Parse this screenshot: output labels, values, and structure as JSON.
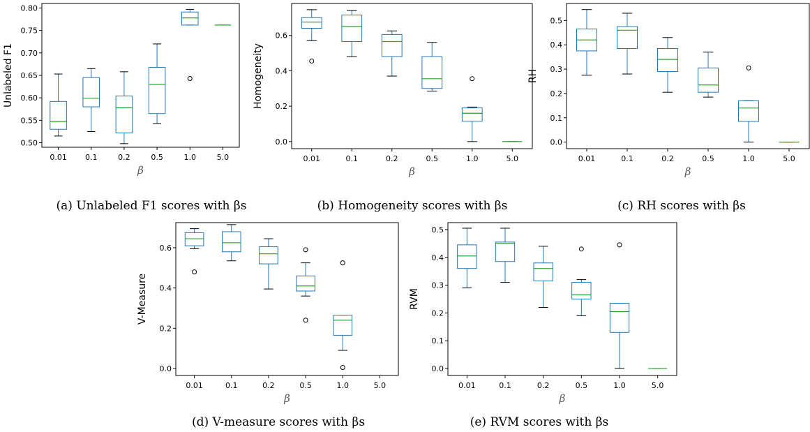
{
  "chart_data": [
    {
      "type": "box",
      "caption": "(a) Unlabeled F1 scores with βs",
      "xlabel": "β",
      "ylabel": "Unlabeled F1",
      "ylim": [
        0.49,
        0.81
      ],
      "yticks": [
        0.5,
        0.55,
        0.6,
        0.65,
        0.7,
        0.75,
        0.8
      ],
      "ytick_labels": [
        "0.50",
        "0.55",
        "0.60",
        "0.65",
        "0.70",
        "0.75",
        "0.80"
      ],
      "categories": [
        "0.01",
        "0.1",
        "0.2",
        "0.5",
        "1.0",
        "5.0"
      ],
      "boxes": [
        {
          "whislo": 0.515,
          "q1": 0.53,
          "med": 0.547,
          "q3": 0.592,
          "whishi": 0.653,
          "fliers": []
        },
        {
          "whislo": 0.525,
          "q1": 0.58,
          "med": 0.599,
          "q3": 0.645,
          "whishi": 0.665,
          "fliers": []
        },
        {
          "whislo": 0.498,
          "q1": 0.522,
          "med": 0.578,
          "q3": 0.604,
          "whishi": 0.658,
          "fliers": []
        },
        {
          "whislo": 0.543,
          "q1": 0.565,
          "med": 0.63,
          "q3": 0.668,
          "whishi": 0.72,
          "fliers": []
        },
        {
          "whislo": 0.762,
          "q1": 0.762,
          "med": 0.778,
          "q3": 0.791,
          "whishi": 0.797,
          "fliers": [
            0.643
          ]
        },
        {
          "whislo": 0.762,
          "q1": 0.762,
          "med": 0.762,
          "q3": 0.762,
          "whishi": 0.762,
          "fliers": []
        }
      ]
    },
    {
      "type": "box",
      "caption": "(b) Homogeneity scores with βs",
      "xlabel": "β",
      "ylabel": "Homogeneity",
      "ylim": [
        -0.04,
        0.78
      ],
      "yticks": [
        0.0,
        0.2,
        0.4,
        0.6
      ],
      "ytick_labels": [
        "0.0",
        "0.2",
        "0.4",
        "0.6"
      ],
      "categories": [
        "0.01",
        "0.1",
        "0.2",
        "0.5",
        "1.0",
        "5.0"
      ],
      "boxes": [
        {
          "whislo": 0.57,
          "q1": 0.64,
          "med": 0.675,
          "q3": 0.7,
          "whishi": 0.745,
          "fliers": [
            0.455
          ]
        },
        {
          "whislo": 0.48,
          "q1": 0.565,
          "med": 0.65,
          "q3": 0.715,
          "whishi": 0.74,
          "fliers": []
        },
        {
          "whislo": 0.37,
          "q1": 0.48,
          "med": 0.565,
          "q3": 0.605,
          "whishi": 0.625,
          "fliers": []
        },
        {
          "whislo": 0.285,
          "q1": 0.3,
          "med": 0.355,
          "q3": 0.48,
          "whishi": 0.56,
          "fliers": []
        },
        {
          "whislo": 0.0,
          "q1": 0.115,
          "med": 0.16,
          "q3": 0.19,
          "whishi": 0.195,
          "fliers": [
            0.355
          ]
        },
        {
          "whislo": 0.0,
          "q1": 0.0,
          "med": 0.0,
          "q3": 0.0,
          "whishi": 0.0,
          "fliers": []
        }
      ]
    },
    {
      "type": "box",
      "caption": "(c) RH scores with βs",
      "xlabel": "β",
      "ylabel": "RH",
      "ylim": [
        -0.027,
        0.57
      ],
      "yticks": [
        0.0,
        0.1,
        0.2,
        0.3,
        0.4,
        0.5
      ],
      "ytick_labels": [
        "0.0",
        "0.1",
        "0.2",
        "0.3",
        "0.4",
        "0.5"
      ],
      "categories": [
        "0.01",
        "0.1",
        "0.2",
        "0.5",
        "1.0",
        "5.0"
      ],
      "boxes": [
        {
          "whislo": 0.275,
          "q1": 0.375,
          "med": 0.42,
          "q3": 0.465,
          "whishi": 0.545,
          "fliers": []
        },
        {
          "whislo": 0.28,
          "q1": 0.385,
          "med": 0.46,
          "q3": 0.475,
          "whishi": 0.53,
          "fliers": []
        },
        {
          "whislo": 0.205,
          "q1": 0.29,
          "med": 0.34,
          "q3": 0.385,
          "whishi": 0.43,
          "fliers": []
        },
        {
          "whislo": 0.185,
          "q1": 0.205,
          "med": 0.235,
          "q3": 0.305,
          "whishi": 0.37,
          "fliers": []
        },
        {
          "whislo": 0.0,
          "q1": 0.085,
          "med": 0.14,
          "q3": 0.17,
          "whishi": 0.17,
          "fliers": [
            0.305
          ]
        },
        {
          "whislo": 0.0,
          "q1": 0.0,
          "med": 0.0,
          "q3": 0.0,
          "whishi": 0.0,
          "fliers": []
        }
      ]
    },
    {
      "type": "box",
      "caption": "(d) V-measure scores with βs",
      "xlabel": "β",
      "ylabel": "V-Measure",
      "ylim": [
        -0.035,
        0.725
      ],
      "yticks": [
        0.0,
        0.2,
        0.4,
        0.6
      ],
      "ytick_labels": [
        "0.0",
        "0.2",
        "0.4",
        "0.6"
      ],
      "categories": [
        "0.01",
        "0.1",
        "0.2",
        "0.5",
        "1.0",
        "5.0"
      ],
      "boxes": [
        {
          "whislo": 0.595,
          "q1": 0.61,
          "med": 0.645,
          "q3": 0.675,
          "whishi": 0.695,
          "fliers": [
            0.48
          ]
        },
        {
          "whislo": 0.535,
          "q1": 0.58,
          "med": 0.625,
          "q3": 0.68,
          "whishi": 0.715,
          "fliers": []
        },
        {
          "whislo": 0.395,
          "q1": 0.52,
          "med": 0.57,
          "q3": 0.605,
          "whishi": 0.645,
          "fliers": []
        },
        {
          "whislo": 0.36,
          "q1": 0.385,
          "med": 0.41,
          "q3": 0.46,
          "whishi": 0.525,
          "fliers": [
            0.59,
            0.24
          ]
        },
        {
          "whislo": 0.09,
          "q1": 0.165,
          "med": 0.24,
          "q3": 0.265,
          "whishi": 0.265,
          "fliers": [
            0.525,
            0.005
          ]
        },
        {
          "empty": true
        }
      ]
    },
    {
      "type": "box",
      "caption": "(e) RVM scores with βs",
      "xlabel": "β",
      "ylabel": "RVM",
      "ylim": [
        -0.025,
        0.525
      ],
      "yticks": [
        0.0,
        0.1,
        0.2,
        0.3,
        0.4,
        0.5
      ],
      "ytick_labels": [
        "0.0",
        "0.1",
        "0.2",
        "0.3",
        "0.4",
        "0.5"
      ],
      "categories": [
        "0.01",
        "0.1",
        "0.2",
        "0.5",
        "1.0",
        "5.0"
      ],
      "boxes": [
        {
          "whislo": 0.29,
          "q1": 0.36,
          "med": 0.405,
          "q3": 0.445,
          "whishi": 0.505,
          "fliers": []
        },
        {
          "whislo": 0.31,
          "q1": 0.385,
          "med": 0.45,
          "q3": 0.455,
          "whishi": 0.505,
          "fliers": []
        },
        {
          "whislo": 0.22,
          "q1": 0.315,
          "med": 0.36,
          "q3": 0.38,
          "whishi": 0.44,
          "fliers": []
        },
        {
          "whislo": 0.19,
          "q1": 0.25,
          "med": 0.265,
          "q3": 0.31,
          "whishi": 0.32,
          "fliers": [
            0.43
          ]
        },
        {
          "whislo": 0.0,
          "q1": 0.13,
          "med": 0.205,
          "q3": 0.235,
          "whishi": 0.235,
          "fliers": [
            0.445
          ]
        },
        {
          "whislo": 0.0,
          "q1": 0.0,
          "med": 0.0,
          "q3": 0.0,
          "whishi": 0.0,
          "fliers": []
        }
      ]
    }
  ],
  "style": {
    "box_color": "#1f77b4",
    "median_color": "#2ca02c",
    "axis_color": "#000000"
  }
}
